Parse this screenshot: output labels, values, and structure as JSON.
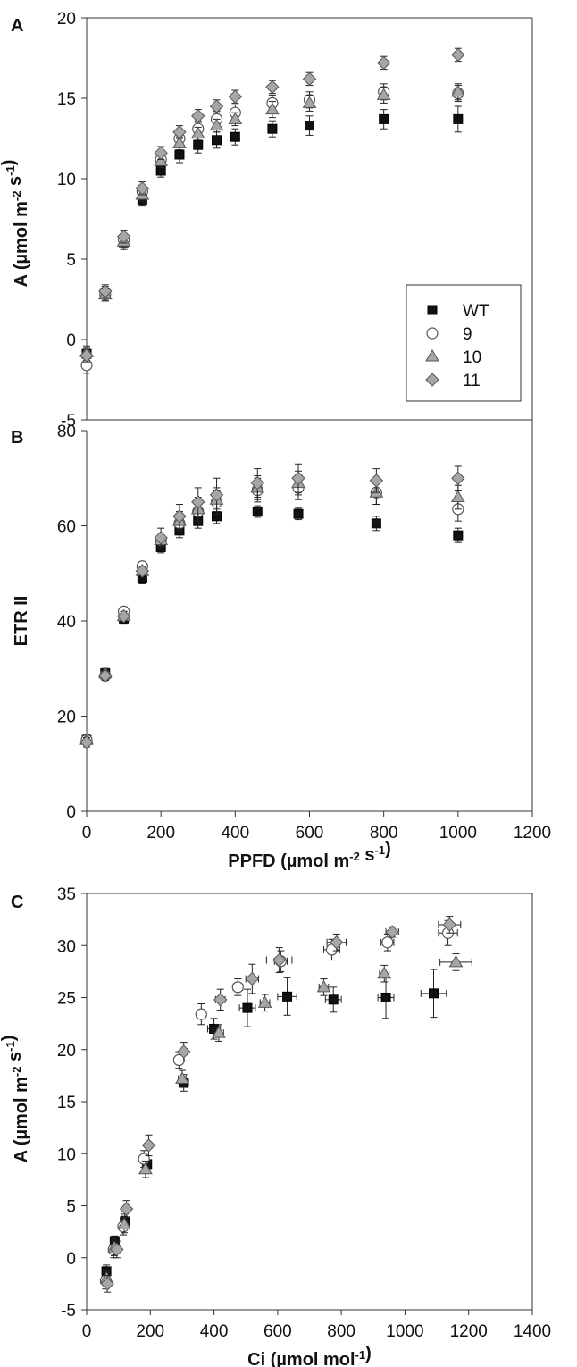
{
  "legend": {
    "entries": [
      {
        "label": "WT",
        "marker": "square",
        "fill": "#111111"
      },
      {
        "label": "9",
        "marker": "circle",
        "fill": "#ffffff"
      },
      {
        "label": "10",
        "marker": "triangle",
        "fill": "#a6a6a6"
      },
      {
        "label": "11",
        "marker": "diamond",
        "fill": "#a6a6a6"
      }
    ]
  },
  "chart_data": [
    {
      "panel": "A",
      "type": "scatter",
      "xlabel": "",
      "ylabel": "A (µmol m-2 s-1)",
      "xlim": [
        0,
        1200
      ],
      "ylim": [
        -5,
        20
      ],
      "yticks": [
        -5,
        0,
        5,
        10,
        15,
        20
      ],
      "series": [
        {
          "name": "WT",
          "x": [
            0,
            50,
            100,
            150,
            200,
            250,
            300,
            350,
            400,
            500,
            600,
            800,
            1000
          ],
          "y": [
            -0.9,
            2.9,
            6.0,
            8.7,
            10.5,
            11.5,
            12.1,
            12.4,
            12.6,
            13.1,
            13.3,
            13.7,
            13.7
          ],
          "err": [
            0.4,
            0.4,
            0.4,
            0.4,
            0.4,
            0.5,
            0.5,
            0.5,
            0.5,
            0.5,
            0.6,
            0.6,
            0.8
          ]
        },
        {
          "name": "9",
          "x": [
            0,
            50,
            100,
            150,
            200,
            250,
            300,
            350,
            400,
            500,
            600,
            800,
            1000
          ],
          "y": [
            -1.6,
            2.8,
            6.2,
            9.2,
            11.2,
            12.5,
            13.1,
            13.7,
            14.1,
            14.7,
            14.9,
            15.4,
            15.3
          ],
          "err": [
            0.5,
            0.4,
            0.4,
            0.4,
            0.4,
            0.4,
            0.5,
            0.5,
            0.5,
            0.5,
            0.5,
            0.5,
            0.5
          ]
        },
        {
          "name": "10",
          "x": [
            0,
            50,
            100,
            150,
            200,
            250,
            300,
            350,
            400,
            500,
            600,
            800,
            1000
          ],
          "y": [
            -0.8,
            2.8,
            6.1,
            9.0,
            11.1,
            12.2,
            12.8,
            13.3,
            13.7,
            14.3,
            14.7,
            15.2,
            15.4
          ],
          "err": [
            0.4,
            0.4,
            0.4,
            0.4,
            0.4,
            0.4,
            0.4,
            0.4,
            0.4,
            0.5,
            0.5,
            0.5,
            0.5
          ]
        },
        {
          "name": "11",
          "x": [
            0,
            50,
            100,
            150,
            200,
            250,
            300,
            350,
            400,
            500,
            600,
            800,
            1000
          ],
          "y": [
            -1.0,
            3.0,
            6.4,
            9.4,
            11.6,
            12.9,
            13.9,
            14.5,
            15.1,
            15.7,
            16.2,
            17.2,
            17.7
          ],
          "err": [
            0.4,
            0.4,
            0.4,
            0.4,
            0.4,
            0.4,
            0.4,
            0.4,
            0.4,
            0.4,
            0.4,
            0.4,
            0.4
          ]
        }
      ]
    },
    {
      "panel": "B",
      "type": "scatter",
      "xlabel": "PPFD (µmol m-2 s-1)",
      "ylabel": "ETR II",
      "xlim": [
        0,
        1200
      ],
      "ylim": [
        0,
        80
      ],
      "xticks": [
        0,
        200,
        400,
        600,
        800,
        1000,
        1200
      ],
      "yticks": [
        0,
        20,
        40,
        60,
        80
      ],
      "series": [
        {
          "name": "WT",
          "x": [
            0,
            50,
            100,
            150,
            200,
            250,
            300,
            350,
            460,
            570,
            780,
            1000
          ],
          "y": [
            15.0,
            29.0,
            40.5,
            49.0,
            55.5,
            59.0,
            61.0,
            62.0,
            63.0,
            62.5,
            60.5,
            58.0
          ],
          "err": [
            1.0,
            1.0,
            1.0,
            1.2,
            1.2,
            1.5,
            1.5,
            1.5,
            1.2,
            1.2,
            1.5,
            1.5
          ]
        },
        {
          "name": "9",
          "x": [
            0,
            50,
            100,
            150,
            200,
            250,
            300,
            350,
            460,
            570,
            780,
            1000
          ],
          "y": [
            15.0,
            28.5,
            42.0,
            51.5,
            57.0,
            60.5,
            63.0,
            65.0,
            67.5,
            68.0,
            67.0,
            63.5
          ],
          "err": [
            1.0,
            1.0,
            1.0,
            1.0,
            1.5,
            2.0,
            2.5,
            2.5,
            2.5,
            2.5,
            2.5,
            2.5
          ]
        },
        {
          "name": "10",
          "x": [
            0,
            50,
            100,
            150,
            200,
            250,
            300,
            350,
            460,
            570,
            780,
            1000
          ],
          "y": [
            15.0,
            29.0,
            41.0,
            50.5,
            57.0,
            61.0,
            63.5,
            65.5,
            68.0,
            69.0,
            67.0,
            66.0
          ],
          "err": [
            1.0,
            1.0,
            1.0,
            1.0,
            1.5,
            2.0,
            2.5,
            2.5,
            2.5,
            2.5,
            2.5,
            2.5
          ]
        },
        {
          "name": "11",
          "x": [
            0,
            50,
            100,
            150,
            200,
            250,
            300,
            350,
            460,
            570,
            780,
            1000
          ],
          "y": [
            14.5,
            28.5,
            41.0,
            50.5,
            57.5,
            62.0,
            65.0,
            66.5,
            69.0,
            70.0,
            69.5,
            70.0
          ],
          "err": [
            1.0,
            1.0,
            1.0,
            1.0,
            2.0,
            2.5,
            3.0,
            3.5,
            3.0,
            3.0,
            2.5,
            2.5
          ]
        }
      ]
    },
    {
      "panel": "C",
      "type": "scatter",
      "xlabel": "Ci (µmol mol-1)",
      "ylabel": "A (µmol m-2 s-1)",
      "xlim": [
        0,
        1400
      ],
      "ylim": [
        -5,
        35
      ],
      "xticks": [
        0,
        200,
        400,
        600,
        800,
        1000,
        1200,
        1400
      ],
      "yticks": [
        -5,
        0,
        5,
        10,
        15,
        20,
        25,
        30,
        35
      ],
      "series": [
        {
          "name": "WT",
          "x": [
            62,
            88,
            120,
            190,
            305,
            400,
            505,
            630,
            775,
            940,
            1090
          ],
          "y": [
            -1.3,
            1.6,
            3.5,
            9.0,
            16.8,
            22.0,
            24.0,
            25.1,
            24.8,
            25.0,
            25.4
          ],
          "xerr": [
            5,
            5,
            8,
            10,
            15,
            20,
            25,
            30,
            25,
            25,
            40
          ],
          "yerr": [
            0.6,
            0.5,
            0.7,
            0.8,
            0.8,
            1.0,
            1.8,
            1.8,
            1.2,
            2.0,
            2.3
          ]
        },
        {
          "name": "9",
          "x": [
            60,
            85,
            115,
            180,
            290,
            360,
            475,
            610,
            770,
            945,
            1135
          ],
          "y": [
            -2.2,
            0.8,
            3.0,
            9.5,
            19.0,
            23.4,
            26.0,
            28.5,
            29.6,
            30.3,
            31.2
          ],
          "xerr": [
            5,
            5,
            8,
            10,
            12,
            15,
            15,
            20,
            25,
            20,
            30
          ],
          "yerr": [
            0.8,
            0.8,
            0.8,
            0.8,
            0.8,
            1.0,
            0.8,
            1.0,
            1.0,
            0.8,
            1.2
          ]
        },
        {
          "name": "10",
          "x": [
            63,
            87,
            118,
            185,
            300,
            415,
            560,
            745,
            935,
            1160
          ],
          "y": [
            -2.0,
            1.0,
            3.2,
            8.5,
            17.2,
            21.6,
            24.5,
            26.0,
            27.3,
            28.4
          ],
          "xerr": [
            5,
            5,
            8,
            10,
            12,
            15,
            15,
            15,
            15,
            50
          ],
          "yerr": [
            0.8,
            0.8,
            0.8,
            0.8,
            0.8,
            0.8,
            0.8,
            0.8,
            0.8,
            0.8
          ]
        },
        {
          "name": "11",
          "x": [
            65,
            95,
            125,
            195,
            305,
            420,
            520,
            605,
            785,
            960,
            1140
          ],
          "y": [
            -2.5,
            0.8,
            4.7,
            10.8,
            19.8,
            24.8,
            26.8,
            28.6,
            30.3,
            31.3,
            32.0
          ],
          "xerr": [
            5,
            5,
            8,
            10,
            12,
            15,
            20,
            40,
            30,
            20,
            35
          ],
          "yerr": [
            0.8,
            0.8,
            0.8,
            1.0,
            0.9,
            1.0,
            1.4,
            1.2,
            0.8,
            0.5,
            0.8
          ]
        }
      ]
    }
  ]
}
